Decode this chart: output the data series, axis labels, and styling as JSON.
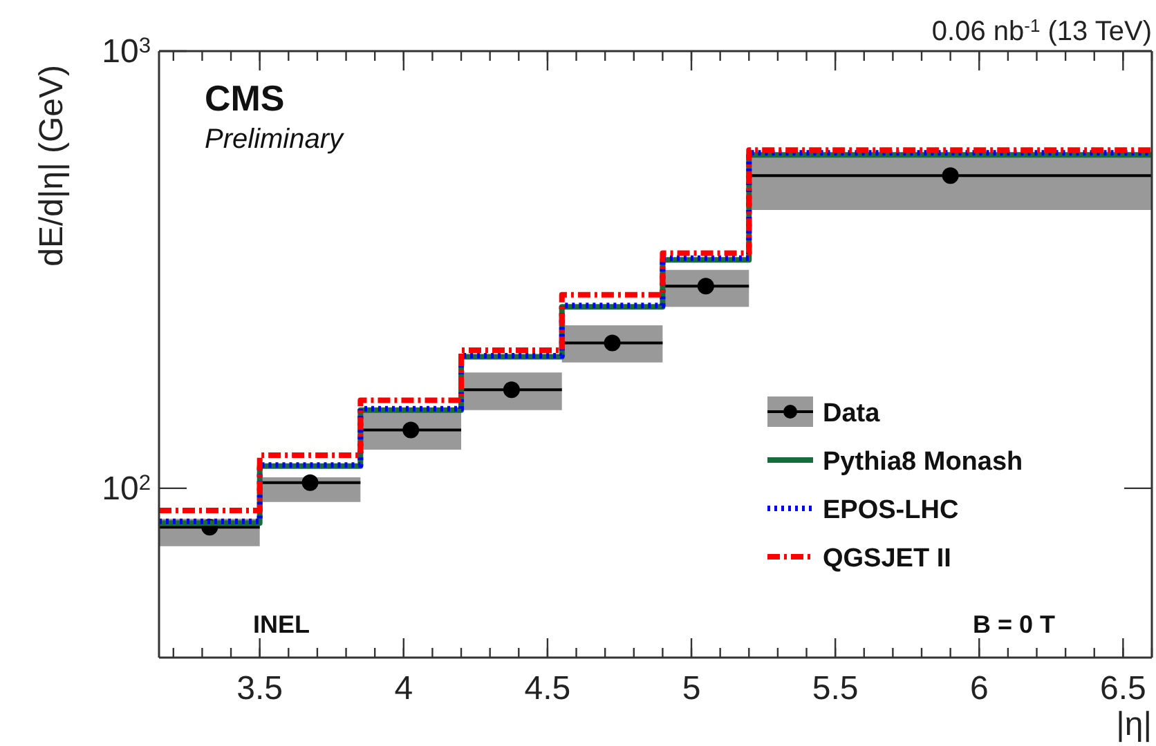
{
  "chart_data": {
    "type": "scatter",
    "title": "0.06 nb$^{-1}$ (13 TeV)",
    "xlabel": "|η|",
    "ylabel": "dE/d|η| (GeV)",
    "annotations": [
      "CMS",
      "Preliminary",
      "INEL",
      "B = 0 T"
    ],
    "log": "y",
    "xlim": [
      3.15,
      6.6
    ],
    "ylim": [
      41,
      1000
    ],
    "xticks": [
      3.5,
      4,
      4.5,
      5,
      5.5,
      6,
      6.5
    ],
    "yticks": [
      {
        "value": 100,
        "label": "10$^{2}$"
      },
      {
        "value": 1000,
        "label": "10$^{3}$"
      }
    ],
    "grid": false,
    "legend": "bottom right",
    "series": [
      {
        "name": "Data",
        "color": "#000000",
        "marker": "circle",
        "x": [
          3.326,
          3.675,
          4.025,
          4.375,
          4.725,
          5.05,
          5.9
        ],
        "values": [
          81.5,
          103,
          136,
          168,
          215,
          290,
          519
        ],
        "xerrors": [
          0.174,
          0.175,
          0.175,
          0.175,
          0.175,
          0.15,
          0.7
        ],
        "errors": [
          [
            73.7,
            85.2
          ],
          [
            93,
            106
          ],
          [
            122.6,
            151
          ],
          [
            151,
            184
          ],
          [
            194,
            236
          ],
          [
            260,
            316
          ],
          [
            433,
            575
          ]
        ]
      },
      {
        "name": "Pythia8 Monash",
        "type": "step",
        "color": "#1a6b3a",
        "line_style": "solid",
        "x": [
          3.15,
          3.5,
          3.85,
          4.2,
          4.55,
          4.9,
          5.2,
          6.6
        ],
        "values": [
          83.3,
          112.4,
          151,
          200,
          260,
          333,
          579,
          579
        ]
      },
      {
        "name": "EPOS-LHC",
        "type": "step",
        "color": "#0000ff",
        "line_style": "dotted",
        "x": [
          3.15,
          3.5,
          3.85,
          4.2,
          4.55,
          4.9,
          5.2,
          6.6
        ],
        "values": [
          84,
          113,
          152,
          201,
          262,
          336,
          585,
          585
        ]
      },
      {
        "name": "QGSJET II",
        "type": "step",
        "color": "#ff0000",
        "line_style": "dashed",
        "x": [
          3.15,
          3.5,
          3.85,
          4.2,
          4.55,
          4.9,
          5.2,
          6.6
        ],
        "values": [
          89,
          119,
          159,
          207,
          277,
          345,
          594,
          594
        ]
      }
    ]
  }
}
